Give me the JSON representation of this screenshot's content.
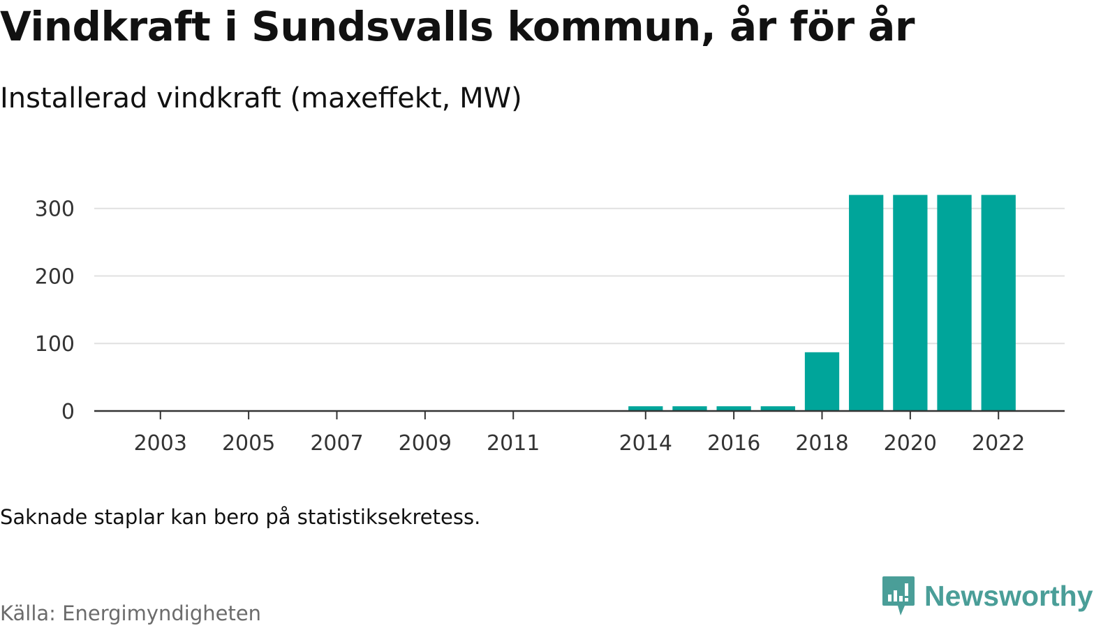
{
  "title": "Vindkraft i Sundsvalls kommun, år för år",
  "subtitle": "Installerad vindkraft (maxeffekt, MW)",
  "note": "Saknade staplar kan bero på statistiksekretess.",
  "source": "Källa: Energimyndigheten",
  "brand": {
    "name": "Newsworthy",
    "icon": "newsworthy-logo-icon"
  },
  "colors": {
    "bar": "#00a59a",
    "grid": "#e0e0e0",
    "axis": "#333333",
    "brand": "#4a9e98"
  },
  "chart_data": {
    "type": "bar",
    "title": "Vindkraft i Sundsvalls kommun, år för år",
    "subtitle": "Installerad vindkraft (maxeffekt, MW)",
    "xlabel": "",
    "ylabel": "",
    "x_range": [
      2001.5,
      2023.5
    ],
    "ylim": [
      0,
      340
    ],
    "yticks": [
      0,
      100,
      200,
      300
    ],
    "xtick_labels": [
      "2003",
      "2005",
      "2007",
      "2009",
      "2011",
      "2014",
      "2016",
      "2018",
      "2020",
      "2022"
    ],
    "grid": true,
    "x": [
      2014,
      2015,
      2016,
      2017,
      2018,
      2019,
      2020,
      2021,
      2022
    ],
    "values": [
      7,
      7,
      7,
      7,
      87,
      320,
      320,
      320,
      320
    ]
  }
}
